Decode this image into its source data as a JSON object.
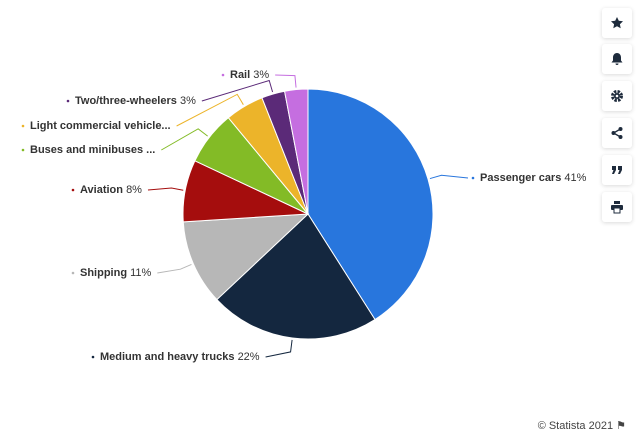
{
  "chart_data": {
    "type": "pie",
    "categories": [
      "Passenger cars",
      "Medium and heavy trucks",
      "Shipping",
      "Aviation",
      "Buses and minibuses ...",
      "Light commercial vehicle...",
      "Two/three-wheelers",
      "Rail"
    ],
    "values": [
      41,
      22,
      11,
      8,
      7,
      5,
      3,
      3
    ],
    "value_labels": [
      "41%",
      "22%",
      "11%",
      "8%",
      null,
      null,
      "3%",
      "3%"
    ],
    "colors": [
      "#2876dd",
      "#14273f",
      "#b7b7b7",
      "#a50d0d",
      "#83bb26",
      "#ecb42a",
      "#5b2a78",
      "#c56ee0"
    ]
  },
  "credit": "© Statista 2021"
}
